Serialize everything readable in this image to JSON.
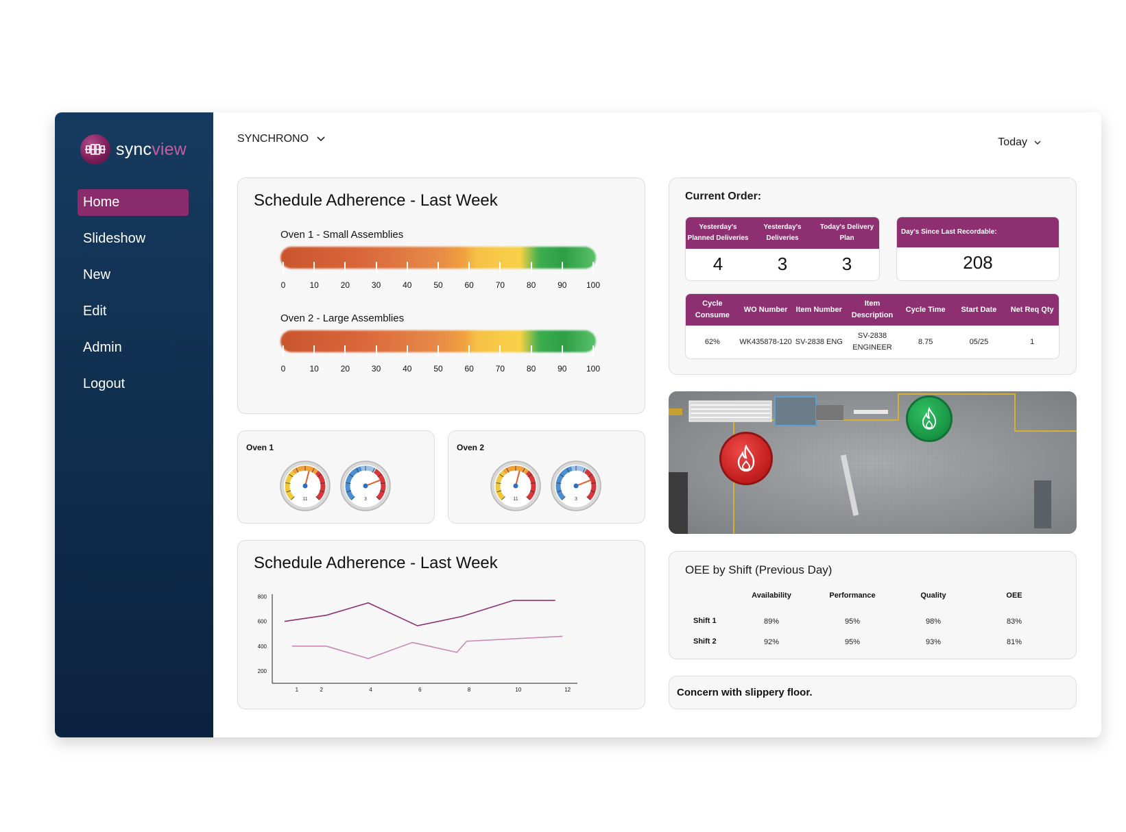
{
  "brand": {
    "name_main": "sync",
    "name_accent": "view",
    "mark_color": "#8a2c6b"
  },
  "sidebar": {
    "items": [
      {
        "label": "Home",
        "active": true
      },
      {
        "label": "Slideshow",
        "active": false
      },
      {
        "label": "New",
        "active": false
      },
      {
        "label": "Edit",
        "active": false
      },
      {
        "label": "Admin",
        "active": false
      },
      {
        "label": "Logout",
        "active": false
      }
    ]
  },
  "header": {
    "org": "SYNCHRONO",
    "date_range": "Today"
  },
  "schedule_bars": {
    "title": "Schedule Adherence - Last Week",
    "ovens": [
      {
        "label": "Oven 1 - Small Assemblies"
      },
      {
        "label": "Oven 2 - Large Assemblies"
      }
    ],
    "scale": [
      "0",
      "10",
      "20",
      "30",
      "40",
      "50",
      "60",
      "70",
      "80",
      "90",
      "100"
    ]
  },
  "gauges": [
    {
      "title": "Oven 1",
      "gauge_a_value": "11",
      "gauge_b_value": "3"
    },
    {
      "title": "Oven 2",
      "gauge_a_value": "11",
      "gauge_b_value": "3"
    }
  ],
  "current_order": {
    "title": "Current Order:",
    "kpis": {
      "headers": [
        "Yesterday's Planned Deliveries",
        "Yesterday's Deliveries",
        "Today's Delivery Plan"
      ],
      "values": [
        "4",
        "3",
        "3"
      ]
    },
    "recordable": {
      "header": "Day's Since Last Recordable:",
      "value": "208"
    },
    "table": {
      "headers": [
        "Cycle Consume",
        "WO Number",
        "Item Number",
        "Item Description",
        "Cycle Time",
        "Start Date",
        "Net Req Qty"
      ],
      "row": [
        "62%",
        "WK435878-120",
        "SV-2838 ENG",
        "SV-2838 ENGINEER",
        "8.75",
        "05/25",
        "1"
      ]
    },
    "accent_color": "#8d2f70"
  },
  "floor_map": {
    "hazards": [
      {
        "icon": "fire-icon",
        "color": "#d42a2a"
      },
      {
        "icon": "fire-icon",
        "color": "#1f9a48"
      }
    ]
  },
  "line_chart": {
    "title": "Schedule Adherence - Last Week"
  },
  "chart_data": {
    "type": "line",
    "title": "Schedule Adherence - Last Week",
    "xlabel": "",
    "ylabel": "",
    "xlim": [
      0,
      12.4
    ],
    "ylim": [
      100,
      820
    ],
    "xticks": [
      1,
      2,
      4,
      6,
      8,
      10,
      12
    ],
    "yticks": [
      200,
      400,
      600,
      800
    ],
    "grid": false,
    "series": [
      {
        "color": "#8d2f70",
        "x": [
          0.5,
          2.2,
          3.9,
          5.9,
          7.7,
          9.8,
          11.5
        ],
        "y": [
          600,
          650,
          750,
          565,
          640,
          770,
          770
        ]
      },
      {
        "color": "#c889b2",
        "x": [
          0.8,
          2.2,
          3.9,
          5.7,
          7.5,
          7.9,
          11.8
        ],
        "y": [
          400,
          400,
          300,
          430,
          350,
          440,
          480
        ]
      }
    ]
  },
  "oee": {
    "title": "OEE by Shift (Previous Day)",
    "headers": [
      "Availability",
      "Performance",
      "Quality",
      "OEE"
    ],
    "rows": [
      {
        "label": "Shift 1",
        "values": [
          "89%",
          "95%",
          "98%",
          "83%"
        ]
      },
      {
        "label": "Shift 2",
        "values": [
          "92%",
          "95%",
          "93%",
          "81%"
        ]
      }
    ]
  },
  "note": {
    "text": "Concern with slippery floor."
  }
}
